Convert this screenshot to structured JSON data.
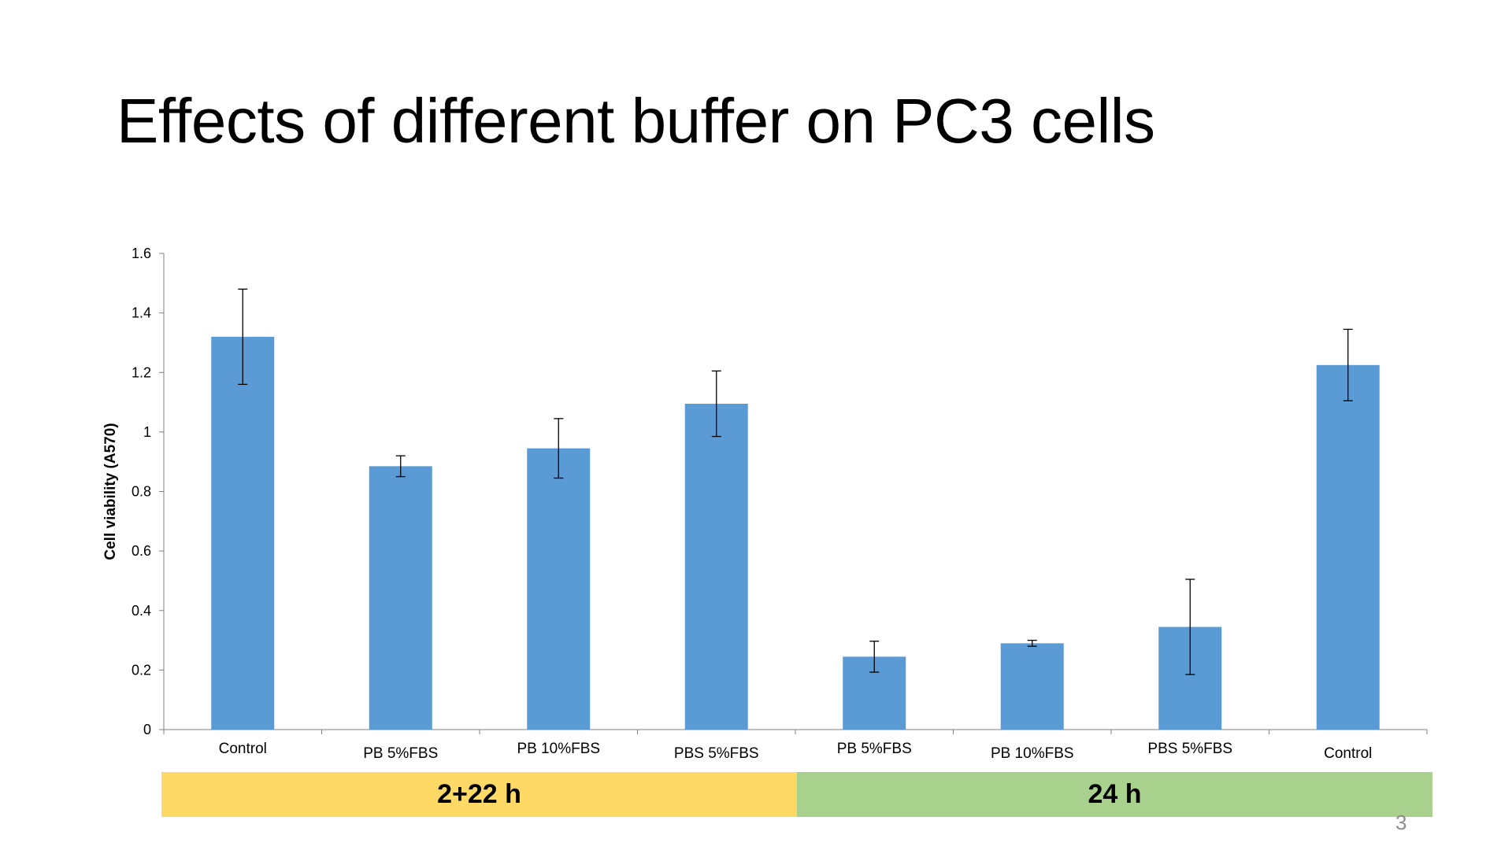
{
  "slide": {
    "title": "Effects of different buffer on PC3 cells",
    "page_number": "3"
  },
  "groups": [
    {
      "label": "2+22 h",
      "color": "#FFD966",
      "start": 0,
      "end": 4
    },
    {
      "label": "24 h",
      "color": "#A9D18E",
      "start": 4,
      "end": 8
    }
  ],
  "chart_data": {
    "type": "bar",
    "title": "",
    "xlabel": "",
    "ylabel": "Cell viability (A570)",
    "ylim": [
      0,
      1.6
    ],
    "yticks": [
      0,
      0.2,
      0.4,
      0.6,
      0.8,
      1,
      1.2,
      1.4,
      1.6
    ],
    "ytick_labels": [
      "0",
      "0.2",
      "0.4",
      "0.6",
      "0.8",
      "1",
      "1.2",
      "1.4",
      "1.6"
    ],
    "grid": false,
    "bar_color": "#5B9BD5",
    "categories": [
      "Control",
      "PB 5%FBS",
      "PB 10%FBS",
      "PBS 5%FBS",
      "PB 5%FBS",
      "PB 10%FBS",
      "PBS 5%FBS",
      "Control"
    ],
    "values": [
      1.32,
      0.885,
      0.945,
      1.095,
      0.245,
      0.29,
      0.345,
      1.225
    ],
    "errors": [
      0.16,
      0.035,
      0.1,
      0.11,
      0.052,
      0.01,
      0.16,
      0.12
    ]
  }
}
